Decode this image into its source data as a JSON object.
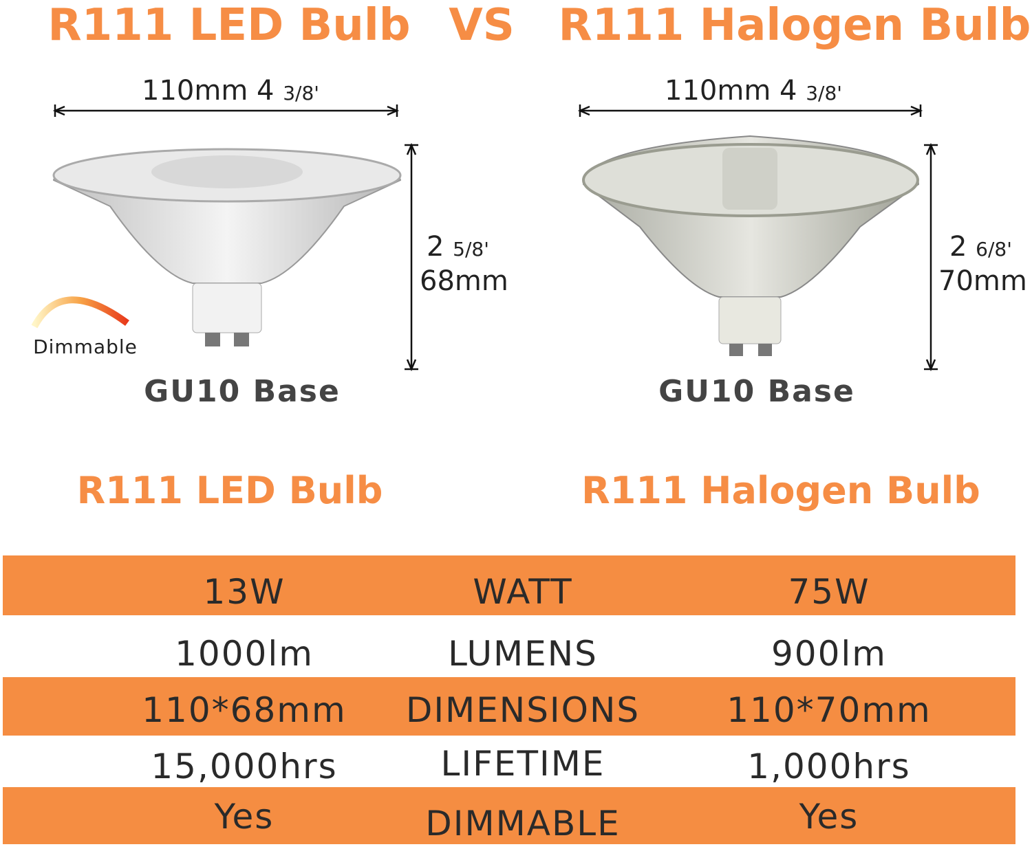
{
  "header": {
    "left": "R111 LED Bulb",
    "vs": "VS",
    "right": "R111 Halogen Bulb"
  },
  "bulbs": [
    {
      "width_main": "110mm 4",
      "width_frac": "3/8'",
      "height_main": "2",
      "height_frac": "5/8'",
      "height_mm": "68mm",
      "base": "GU10 Base",
      "badge": "Dimmable"
    },
    {
      "width_main": "110mm 4",
      "width_frac": "3/8'",
      "height_main": "2",
      "height_frac": "6/8'",
      "height_mm": "70mm",
      "base": "GU10 Base"
    }
  ],
  "subtitles": [
    "R111 LED Bulb",
    "R111 Halogen Bulb"
  ],
  "table": {
    "rows": [
      [
        "13W",
        "WATT",
        "75W"
      ],
      [
        "1000lm",
        "LUMENS",
        "900lm"
      ],
      [
        "110*68mm",
        "DIMENSIONS",
        "110*70mm"
      ],
      [
        "15,000hrs",
        "LIFETIME",
        "1,000hrs"
      ],
      [
        "Yes",
        "DIMMABLE",
        "Yes"
      ]
    ]
  }
}
